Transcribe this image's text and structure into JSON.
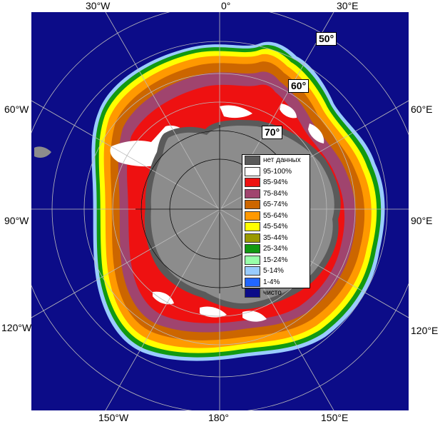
{
  "lon_labels": {
    "top": [
      "30°W",
      "0°",
      "30°E"
    ],
    "left": [
      "60°W",
      "90°W",
      "120°W"
    ],
    "right": [
      "60°E",
      "90°E",
      "120°E"
    ],
    "bottom": [
      "150°W",
      "180°",
      "150°E"
    ]
  },
  "lat_labels": [
    "50°",
    "60°",
    "70°"
  ],
  "legend": [
    {
      "label": "нет данных",
      "color": "#5a5a5a"
    },
    {
      "label": "95-100%",
      "color": "#ffffff"
    },
    {
      "label": "85-94%",
      "color": "#ee1111"
    },
    {
      "label": "75-84%",
      "color": "#a0446e"
    },
    {
      "label": "65-74%",
      "color": "#cc6600"
    },
    {
      "label": "55-64%",
      "color": "#ff9900"
    },
    {
      "label": "45-54%",
      "color": "#ffff00"
    },
    {
      "label": "35-44%",
      "color": "#999900"
    },
    {
      "label": "25-34%",
      "color": "#119911"
    },
    {
      "label": "15-24%",
      "color": "#99ffaa"
    },
    {
      "label": "5-14%",
      "color": "#99ccff"
    },
    {
      "label": "1-4%",
      "color": "#2266ff"
    },
    {
      "label": "чисто",
      "color": "#0c0c88"
    }
  ],
  "colors": {
    "ocean": "#0c0c88",
    "land": "#8c8c8c",
    "no_data": "#5a5a5a",
    "graticule": "#bbbbbb"
  }
}
